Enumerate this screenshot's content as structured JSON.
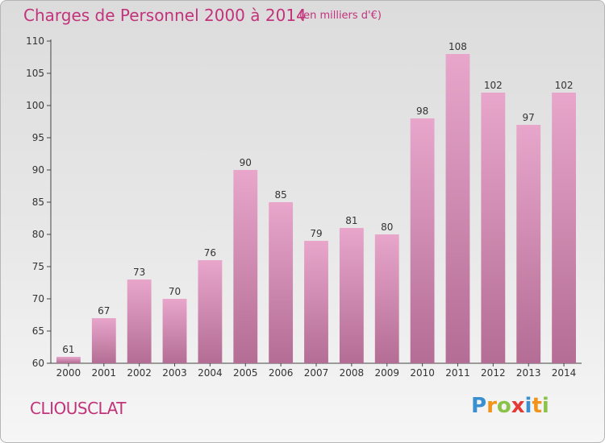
{
  "title": "Charges de Personnel 2000 à 2014",
  "subtitle": "(en milliers d'€)",
  "commune": "CLIOUSCLAT",
  "logo": {
    "letters": [
      "P",
      "r",
      "o",
      "x",
      "i",
      "t",
      "i"
    ],
    "colors": [
      "#3a8fd1",
      "#f29419",
      "#8bc34a",
      "#e53935",
      "#3a8fd1",
      "#f29419",
      "#8bc34a"
    ]
  },
  "colors": {
    "title": "#c2337a",
    "bar_top": "#e8a6cb",
    "bar_bottom": "#b46d94",
    "axis": "#333333"
  },
  "chart_data": {
    "type": "bar",
    "categories": [
      "2000",
      "2001",
      "2002",
      "2003",
      "2004",
      "2005",
      "2006",
      "2007",
      "2008",
      "2009",
      "2010",
      "2011",
      "2012",
      "2013",
      "2014"
    ],
    "values": [
      61,
      67,
      73,
      70,
      76,
      90,
      85,
      79,
      81,
      80,
      98,
      108,
      102,
      97,
      102
    ],
    "title": "Charges de Personnel 2000 à 2014",
    "ylim": [
      60,
      110
    ],
    "yticks": [
      60,
      65,
      70,
      75,
      80,
      85,
      90,
      95,
      100,
      105,
      110
    ],
    "grid": false,
    "data_labels": true
  }
}
